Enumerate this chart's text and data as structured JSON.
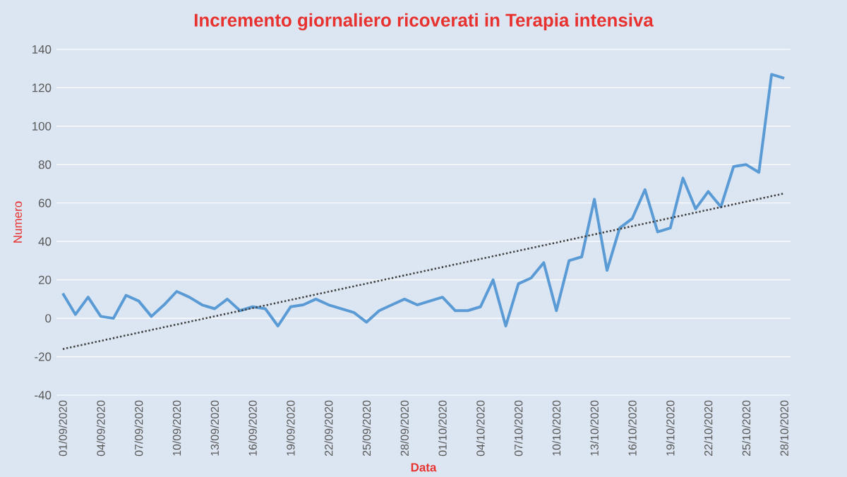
{
  "chart_data": {
    "type": "line",
    "title": "Incremento  giornaliero ricoverati in Terapia intensiva",
    "xlabel": "Data",
    "ylabel": "Numero",
    "categories": [
      "01/09/2020",
      null,
      null,
      "04/09/2020",
      null,
      null,
      "07/09/2020",
      null,
      null,
      "10/09/2020",
      null,
      null,
      "13/09/2020",
      null,
      null,
      "16/09/2020",
      null,
      null,
      "19/09/2020",
      null,
      null,
      "22/09/2020",
      null,
      null,
      "25/09/2020",
      null,
      null,
      "28/09/2020",
      null,
      null,
      "01/10/2020",
      null,
      null,
      "04/10/2020",
      null,
      null,
      "07/10/2020",
      null,
      null,
      "10/10/2020",
      null,
      null,
      "13/10/2020",
      null,
      null,
      "16/10/2020",
      null,
      null,
      "19/10/2020",
      null,
      null,
      "22/10/2020",
      null,
      null,
      "25/10/2020",
      null,
      null,
      "28/10/2020"
    ],
    "series": [
      {
        "color": "#5b9bd5",
        "values": [
          13,
          2,
          11,
          1,
          0,
          12,
          9,
          1,
          7,
          14,
          11,
          7,
          5,
          10,
          4,
          6,
          5,
          -4,
          6,
          7,
          10,
          7,
          5,
          3,
          -2,
          4,
          7,
          10,
          7,
          9,
          11,
          4,
          4,
          6,
          20,
          -4,
          18,
          21,
          29,
          4,
          30,
          32,
          62,
          25,
          47,
          52,
          67,
          45,
          47,
          73,
          57,
          66,
          58,
          79,
          80,
          76,
          127,
          125
        ]
      },
      {
        "type": "line",
        "color": "#404040",
        "line_style": "dotted",
        "x": [
          "01/09/2020",
          "28/10/2020"
        ],
        "values": [
          -16,
          65
        ]
      }
    ],
    "ylim": [
      -40,
      140
    ],
    "yticks": [
      -40,
      -20,
      0,
      20,
      40,
      60,
      80,
      100,
      120,
      140
    ],
    "grid": "y"
  }
}
